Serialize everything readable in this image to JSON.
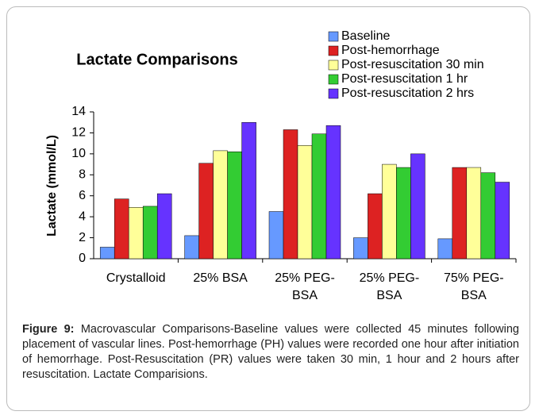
{
  "chart_data": {
    "type": "bar",
    "title": "Lactate Comparisons",
    "y_label": "Lactate (mmol/L)",
    "categories": [
      "Crystalloid",
      "25% BSA",
      "25% PEG-BSA",
      "25% PEG-BSA",
      "75% PEG-BSA"
    ],
    "series": [
      {
        "name": "Baseline",
        "color": "#6699ff",
        "values": [
          1.1,
          2.2,
          4.5,
          2.0,
          1.9
        ]
      },
      {
        "name": "Post-hemorrhage",
        "color": "#dd2222",
        "values": [
          5.7,
          9.1,
          12.3,
          6.2,
          8.7
        ]
      },
      {
        "name": "Post-resuscitation 30 min",
        "color": "#ffff99",
        "values": [
          4.9,
          10.3,
          10.8,
          9.0,
          8.7
        ]
      },
      {
        "name": "Post-resuscitation 1 hr",
        "color": "#33cc33",
        "values": [
          5.0,
          10.2,
          11.9,
          8.7,
          8.2
        ]
      },
      {
        "name": "Post-resuscitation 2 hrs",
        "color": "#6633ff",
        "values": [
          6.2,
          13.0,
          12.7,
          10.0,
          7.3
        ]
      }
    ],
    "ylim": [
      0,
      14
    ],
    "yticks": [
      0,
      2,
      4,
      6,
      8,
      10,
      12,
      14
    ],
    "grid": false,
    "legend": "top-right"
  },
  "figure": {
    "label": "Figure 9:",
    "text": "Macrovascular Comparisons-Baseline values were collected 45 minutes following placement of vascular lines. Post-hemorrhage (PH) values were recorded one hour after initiation of hemorrhage. Post-Resuscitation (PR) values were taken 30 min, 1 hour and 2 hours after resuscitation. Lactate Comparisions."
  }
}
